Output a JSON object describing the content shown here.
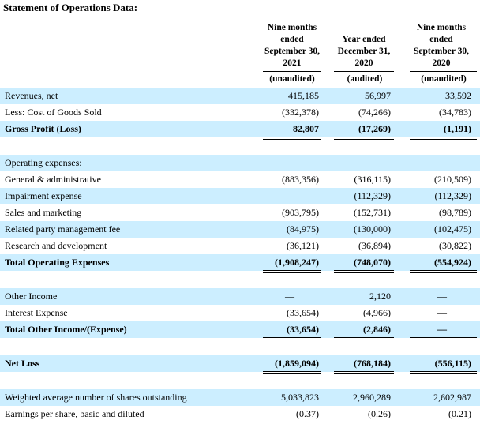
{
  "title": "Statement of Operations Data:",
  "columns": [
    {
      "lines": [
        "Nine months",
        "ended",
        "September 30,",
        "2021"
      ],
      "status": "(unaudited)"
    },
    {
      "lines": [
        "Year ended",
        "December 31,",
        "2020"
      ],
      "status": "(audited)"
    },
    {
      "lines": [
        "Nine months",
        "ended",
        "September 30,",
        "2020"
      ],
      "status": "(unaudited)"
    }
  ],
  "rows": [
    {
      "label": "Revenues, net",
      "values": [
        "415,185",
        "56,997",
        "33,592"
      ]
    },
    {
      "label": "Less: Cost of Goods Sold",
      "values": [
        "(332,378)",
        "(74,266)",
        "(34,783)"
      ]
    },
    {
      "label": "Gross Profit (Loss)",
      "values": [
        "82,807",
        "(17,269)",
        "(1,191)"
      ]
    },
    {
      "label": "Operating expenses:",
      "values": [
        "",
        "",
        ""
      ]
    },
    {
      "label": "General & administrative",
      "values": [
        "(883,356)",
        "(316,115)",
        "(210,509)"
      ]
    },
    {
      "label": "Impairment expense",
      "values": [
        "—",
        "(112,329)",
        "(112,329)"
      ]
    },
    {
      "label": "Sales and marketing",
      "values": [
        "(903,795)",
        "(152,731)",
        "(98,789)"
      ]
    },
    {
      "label": "Related party management fee",
      "values": [
        "(84,975)",
        "(130,000)",
        "(102,475)"
      ]
    },
    {
      "label": "Research and development",
      "values": [
        "(36,121)",
        "(36,894)",
        "(30,822)"
      ]
    },
    {
      "label": "Total Operating Expenses",
      "values": [
        "(1,908,247)",
        "(748,070)",
        "(554,924)"
      ]
    },
    {
      "label": "Other Income",
      "values": [
        "—",
        "2,120",
        "—"
      ]
    },
    {
      "label": "Interest Expense",
      "values": [
        "(33,654)",
        "(4,966)",
        "—"
      ]
    },
    {
      "label": "Total Other Income/(Expense)",
      "values": [
        "(33,654)",
        "(2,846)",
        "—"
      ]
    },
    {
      "label": "Net Loss",
      "values": [
        "(1,859,094)",
        "(768,184)",
        "(556,115)"
      ]
    },
    {
      "label": "Weighted average number of shares outstanding",
      "values": [
        "5,033,823",
        "2,960,289",
        "2,602,987"
      ]
    },
    {
      "label": "Earnings per share, basic and diluted",
      "values": [
        "(0.37)",
        "(0.26)",
        "(0.21)"
      ]
    }
  ]
}
